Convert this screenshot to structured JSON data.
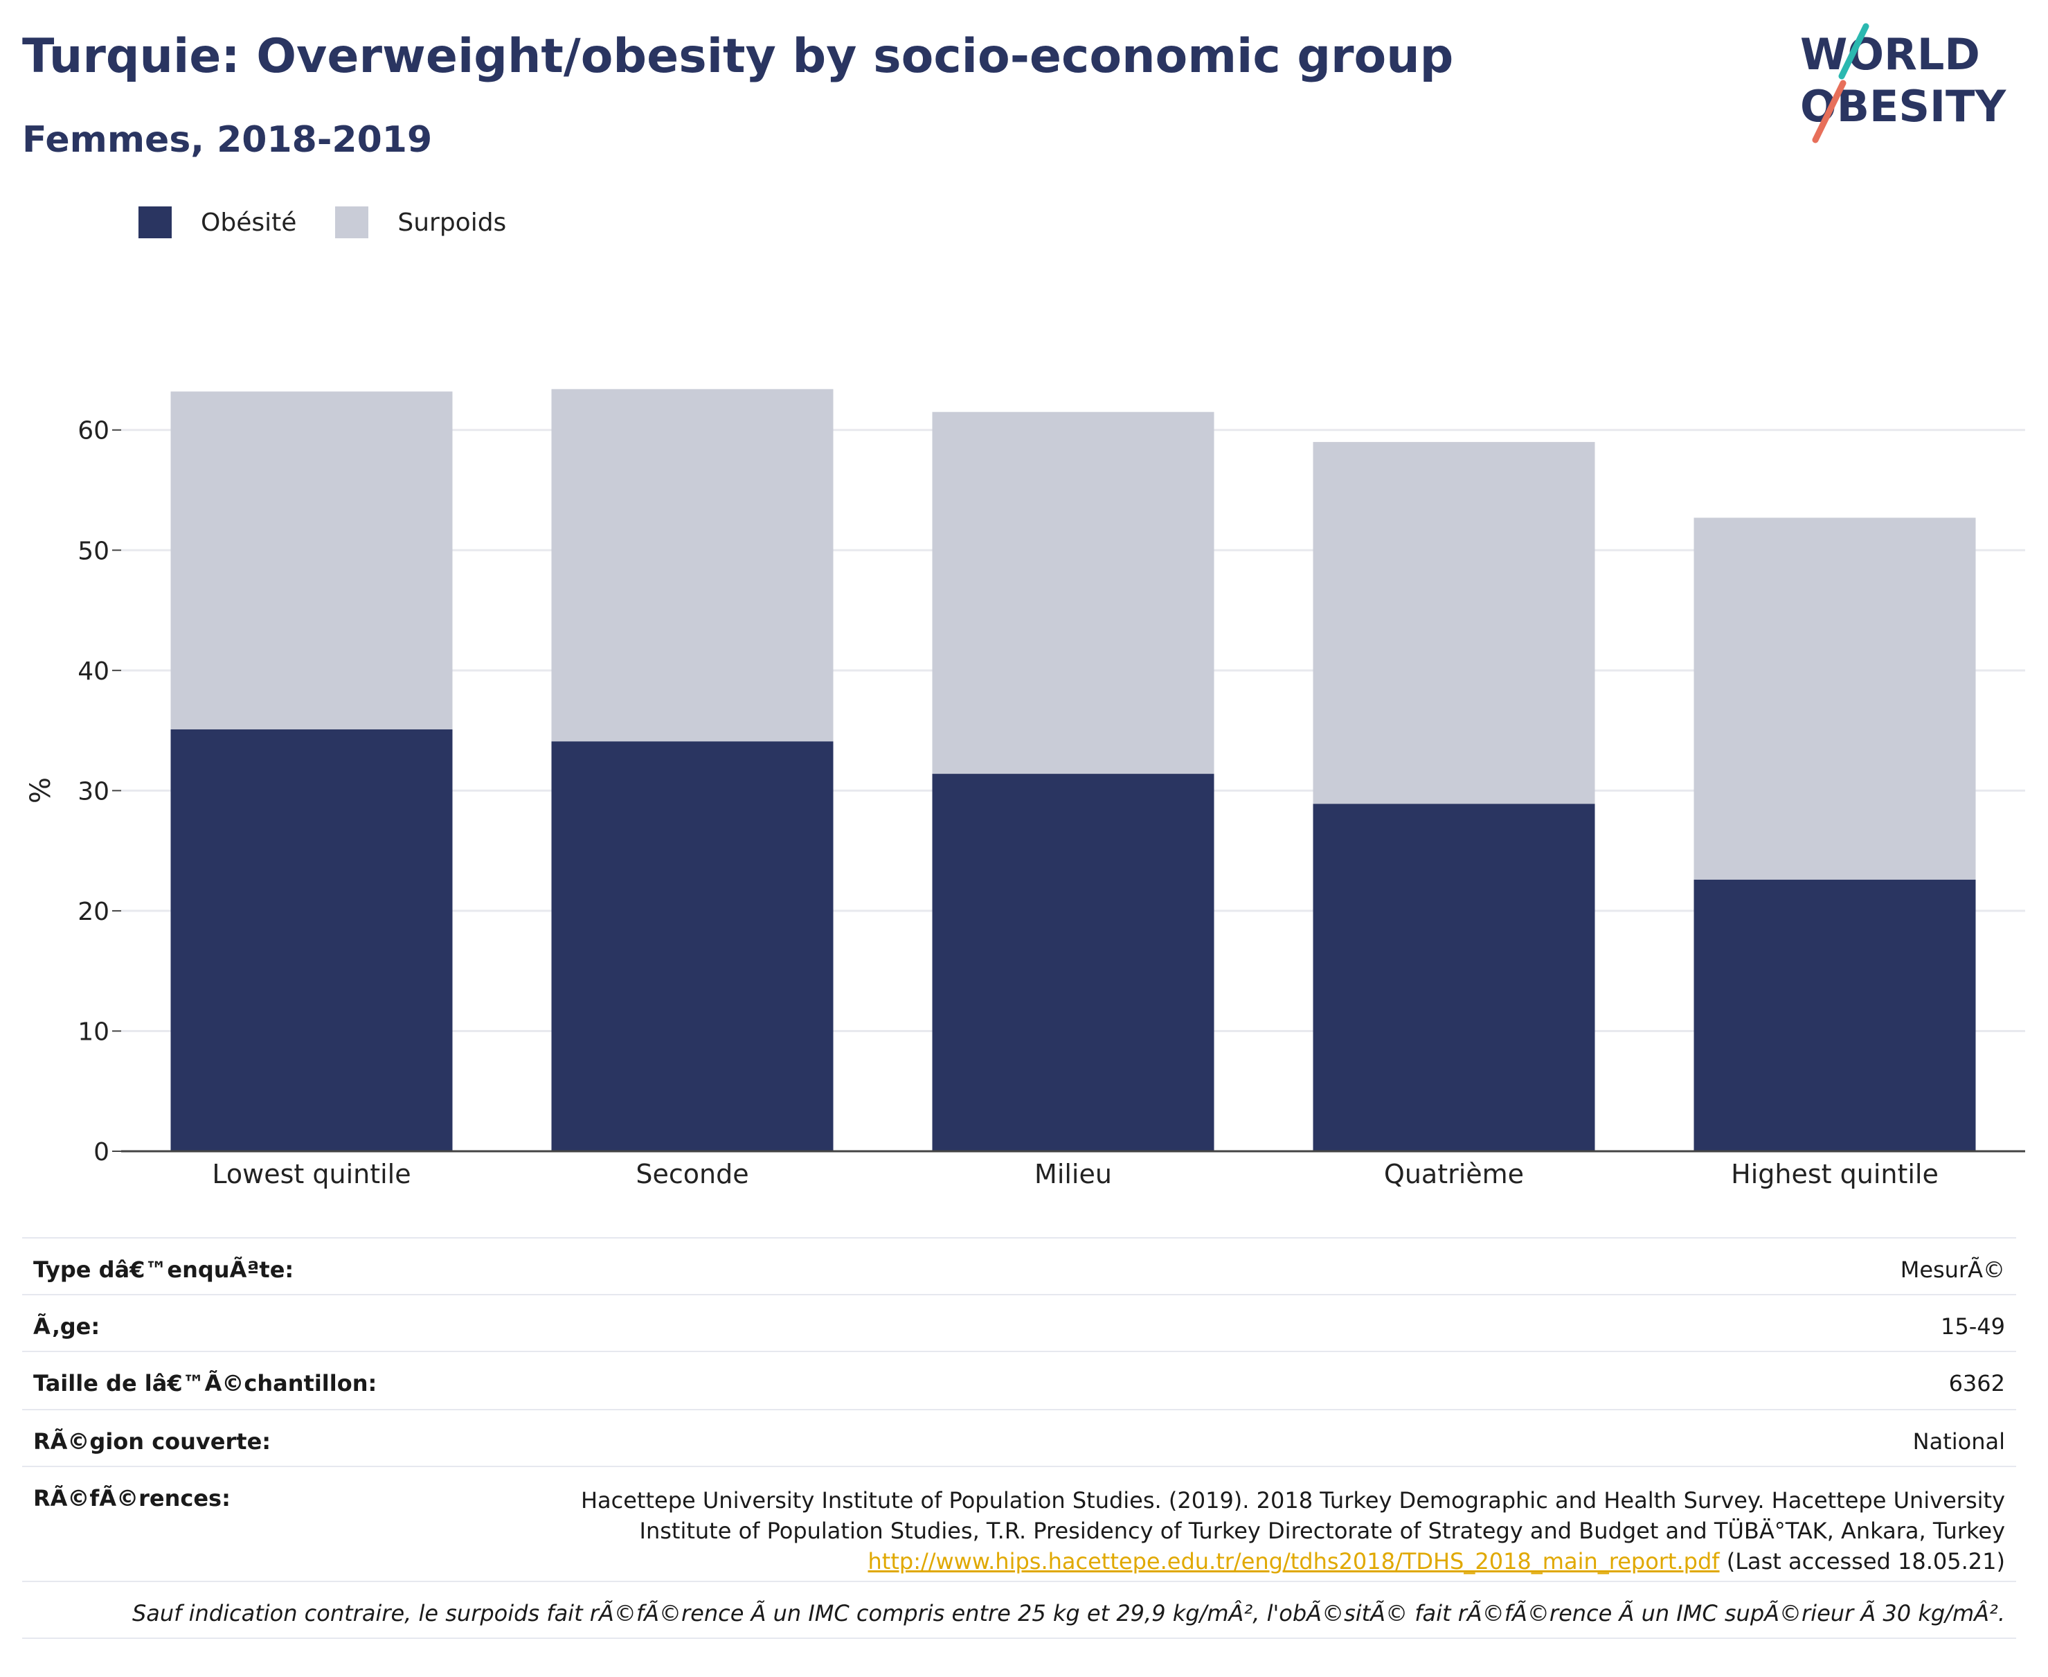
{
  "title": "Turquie: Overweight/obesity by socio-economic group",
  "subtitle": "Femmes, 2018-2019",
  "logo": {
    "line1": "WORLD",
    "line2": "OBESITY"
  },
  "colors": {
    "obesity": "#2a3561",
    "overweight": "#c9ccd7",
    "title": "#2a3561",
    "link": "#e0a800",
    "logo_teal": "#2bb8b0",
    "logo_coral": "#e76f5a"
  },
  "chart_data": {
    "type": "bar",
    "stacked": true,
    "categories": [
      "Lowest quintile",
      "Seconde",
      "Milieu",
      "Quatrième",
      "Highest quintile"
    ],
    "series": [
      {
        "name": "Obésité",
        "values": [
          35.1,
          34.1,
          31.4,
          28.9,
          22.6
        ]
      },
      {
        "name": "Surpoids",
        "values": [
          28.1,
          29.3,
          30.1,
          30.1,
          30.1
        ]
      }
    ],
    "ylabel": "%",
    "ylim": [
      0,
      63.5
    ],
    "yticks": [
      0,
      10,
      20,
      30,
      40,
      50,
      60
    ],
    "grid": true,
    "legend": "top-left"
  },
  "meta": {
    "rows": [
      {
        "key": "Type dâ€™enquÃªte:",
        "value": "MesurÃ©"
      },
      {
        "key": "Ã‚ge:",
        "value": "15-49"
      },
      {
        "key": "Taille de lâ€™Ã©chantillon:",
        "value": "6362"
      },
      {
        "key": "RÃ©gion couverte:",
        "value": "National"
      }
    ],
    "references_key": "RÃ©fÃ©rences:",
    "references_line1": "Hacettepe University Institute of Population Studies. (2019). 2018 Turkey Demographic and Health Survey. Hacettepe University",
    "references_line2": "Institute of Population Studies, T.R. Presidency of Turkey Directorate of Strategy and Budget and TÜBÄ°TAK, Ankara, Turkey",
    "references_link": "http://www.hips.hacettepe.edu.tr/eng/tdhs2018/TDHS_2018_main_report.pdf",
    "references_accessed": " (Last accessed 18.05.21)",
    "note": "Sauf indication contraire, le surpoids fait rÃ©fÃ©rence Ã  un IMC compris entre 25 kg et 29,9 kg/mÂ², l'obÃ©sitÃ© fait rÃ©fÃ©rence Ã  un IMC supÃ©rieur Ã  30 kg/mÂ²."
  }
}
